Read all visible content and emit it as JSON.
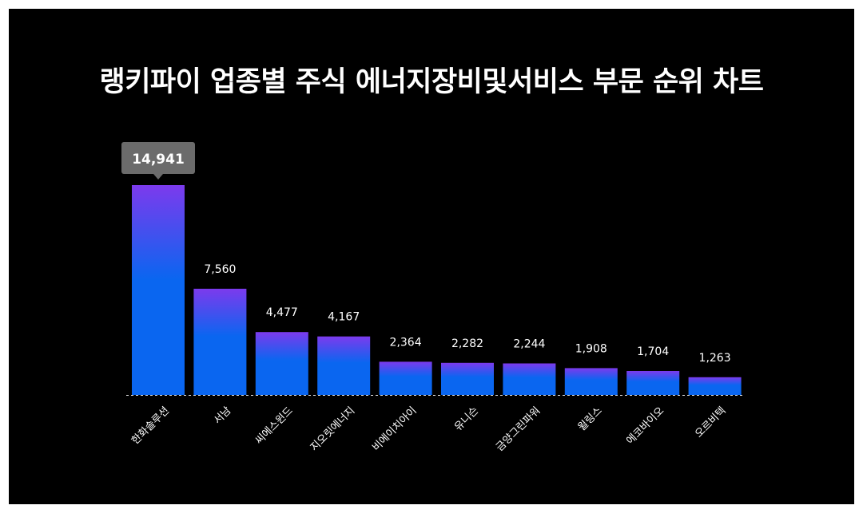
{
  "title": "랭키파이 업종별 주식 에너지장비및서비스 부문 순위 차트",
  "colors": {
    "background": "#000000",
    "frame": "#ffffff",
    "bar_top": "#7c3aed",
    "bar_bottom": "#0a66f0",
    "tooltip_bg": "#6b6b6b",
    "text": "#ffffff"
  },
  "chart_data": {
    "type": "bar",
    "title": "랭키파이 업종별 주식 에너지장비및서비스 부문 순위 차트",
    "xlabel": "",
    "ylabel": "",
    "categories": [
      "한화솔루션",
      "서남",
      "씨에스윈드",
      "지오릿에너지",
      "비에이치아이",
      "유니슨",
      "금양그린파워",
      "윌링스",
      "에코바이오",
      "오르비텍"
    ],
    "values": [
      14941,
      7560,
      4477,
      4167,
      2364,
      2282,
      2244,
      1908,
      1704,
      1263
    ],
    "value_labels": [
      "14,941",
      "7,560",
      "4,477",
      "4,167",
      "2,364",
      "2,282",
      "2,244",
      "1,908",
      "1,704",
      "1,263"
    ],
    "highlight_index": 0,
    "ylim": [
      0,
      14941
    ],
    "grid": false,
    "legend": "none"
  }
}
